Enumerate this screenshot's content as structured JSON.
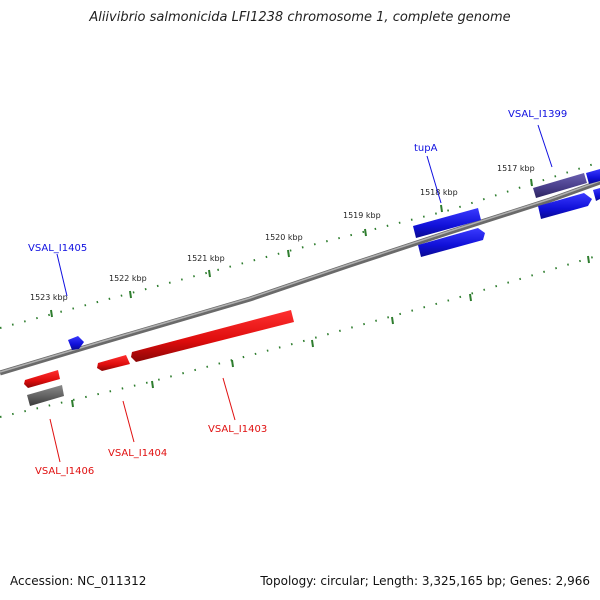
{
  "title": "Aliivibrio salmonicida LFI1238 chromosome 1, complete genome",
  "footer": {
    "accession": "Accession: NC_011312",
    "summary": "Topology: circular; Length: 3,325,165 bp; Genes: 2,966"
  },
  "ticks": [
    "1517 kbp",
    "1518 kbp",
    "1519 kbp",
    "1520 kbp",
    "1521 kbp",
    "1522 kbp",
    "1523 kbp"
  ],
  "gene_labels": {
    "vsal_i1399": "VSAL_I1399",
    "tupA": "tupA",
    "vsal_i1405": "VSAL_I1405",
    "vsal_i1403": "VSAL_I1403",
    "vsal_i1404": "VSAL_I1404",
    "vsal_i1406": "VSAL_I1406"
  },
  "colors": {
    "forward": "#1010e0",
    "reverse": "#e01010",
    "other": "#606060",
    "highlight": "#4a3f8c",
    "tick": "#2e7d2e",
    "backbone": "#808080"
  }
}
